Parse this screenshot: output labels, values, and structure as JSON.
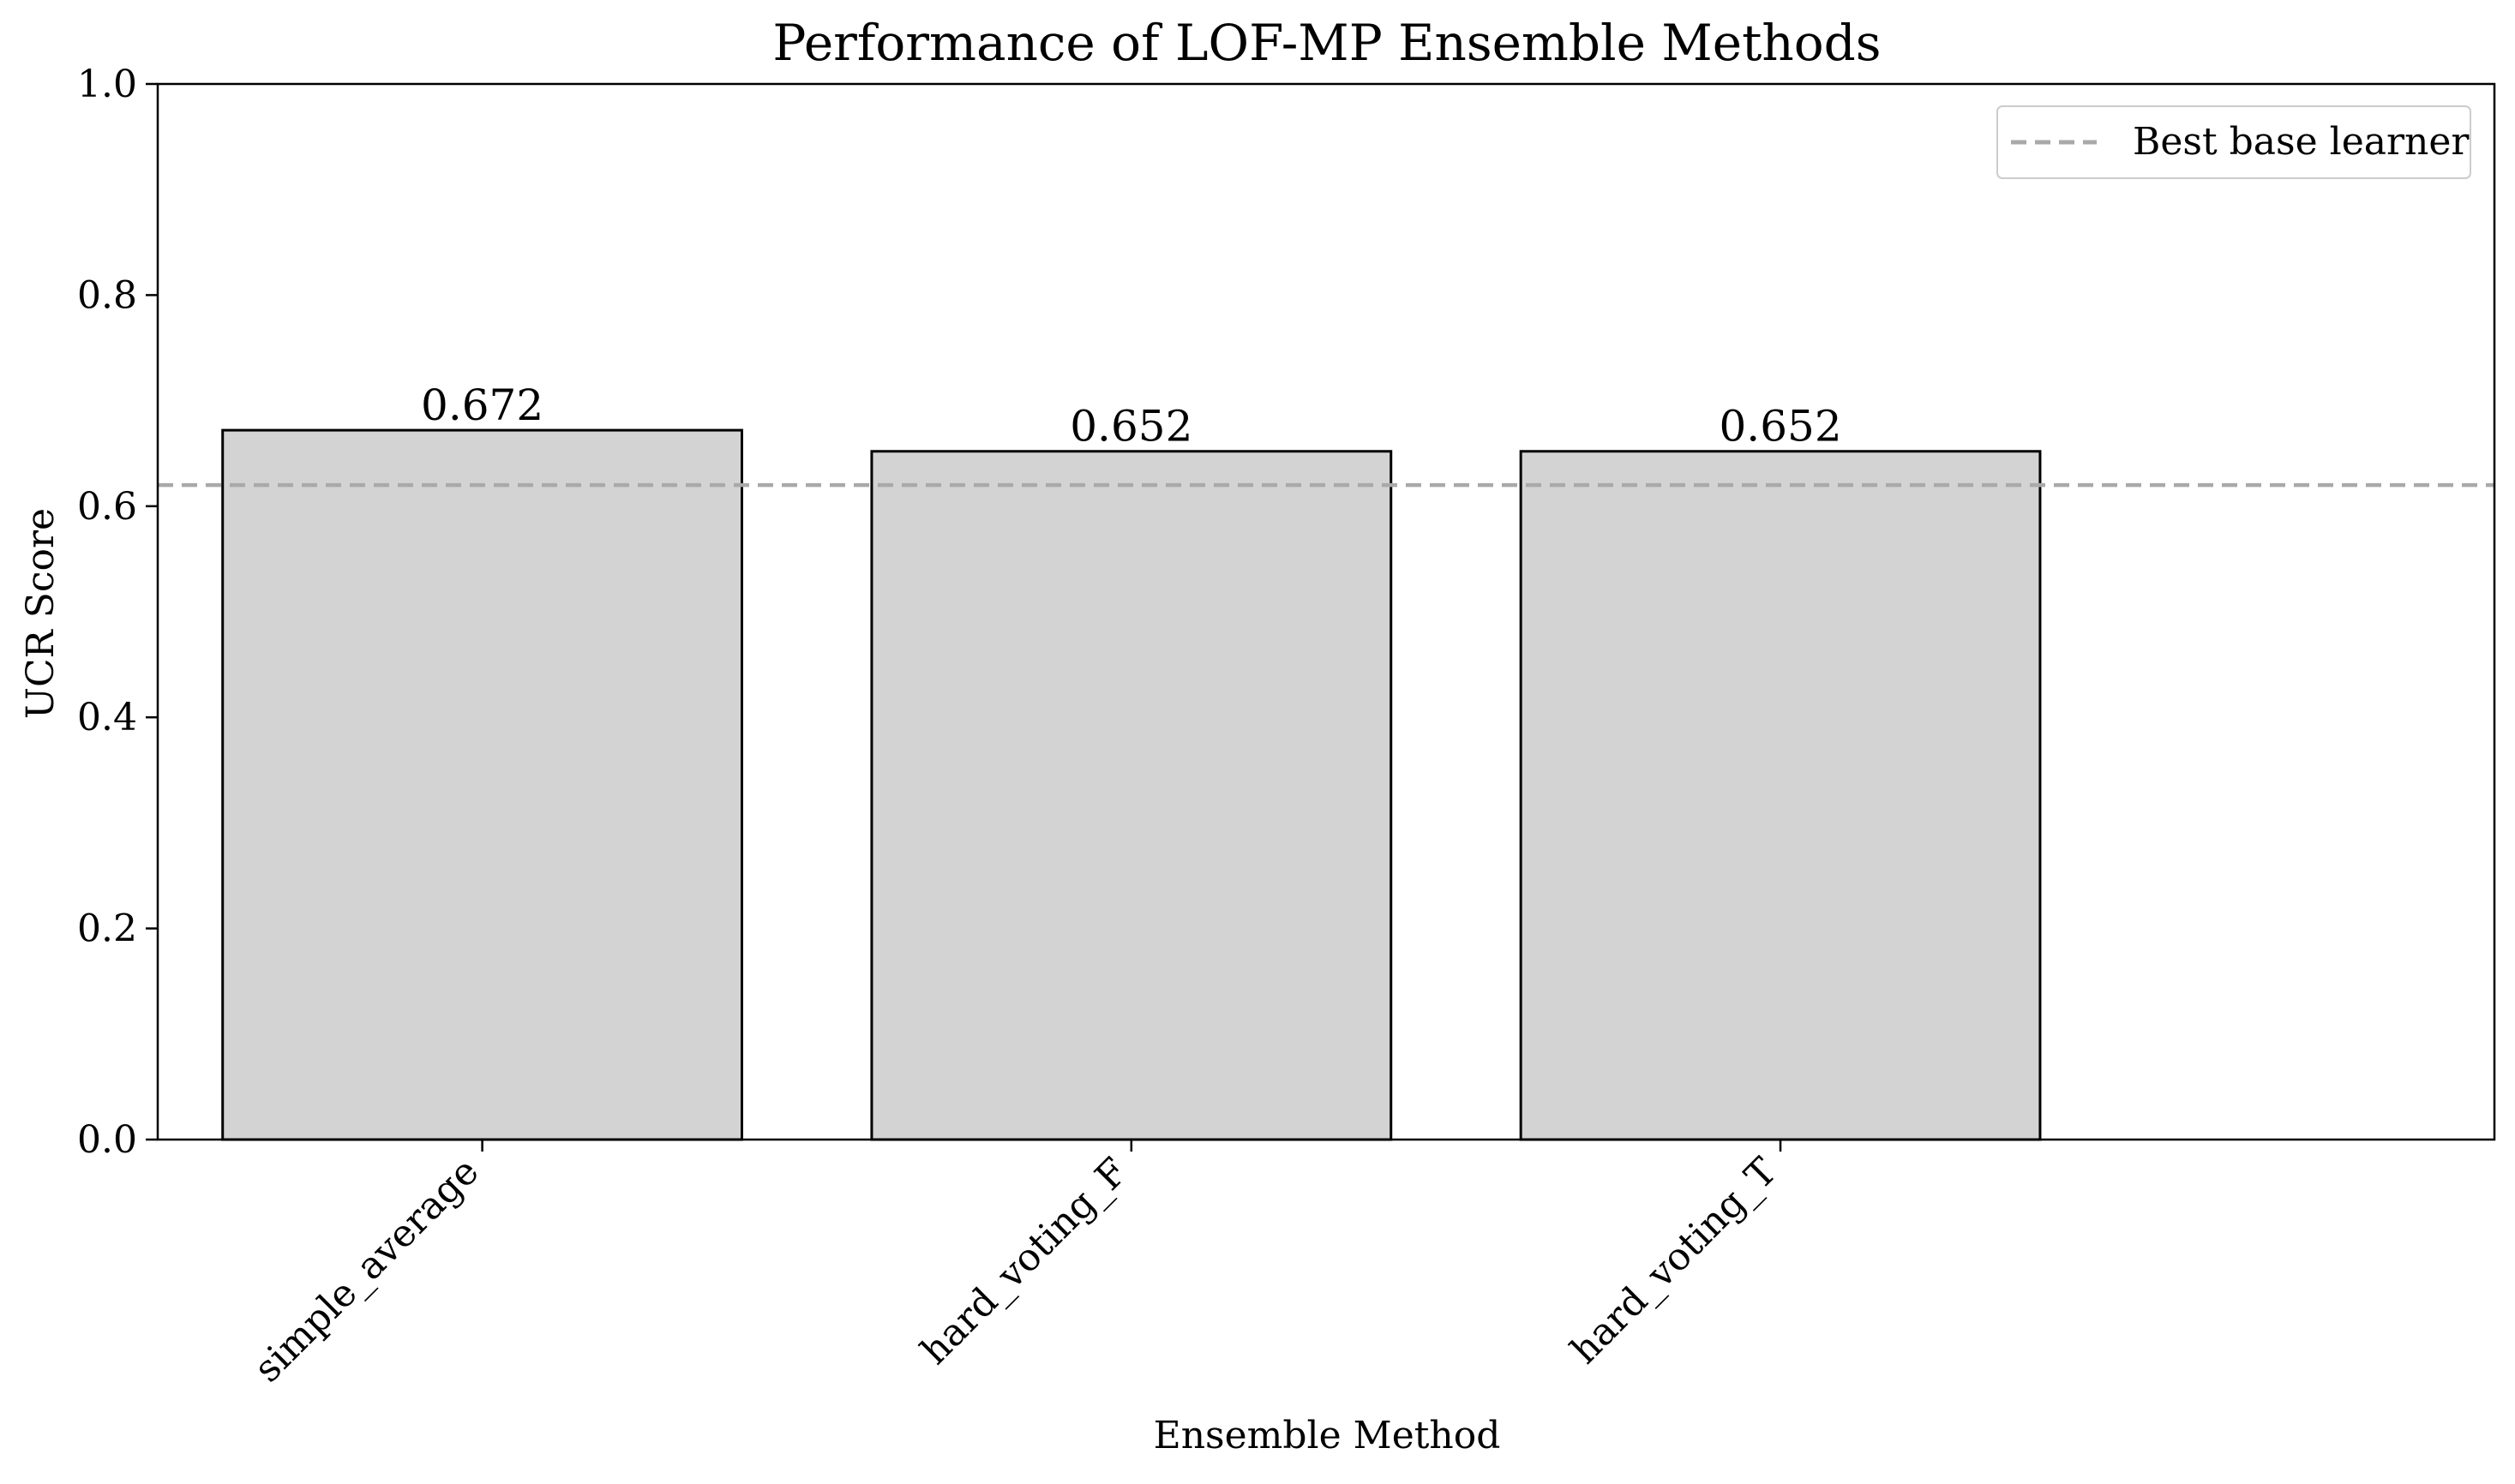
{
  "chart_data": {
    "type": "bar",
    "title": "Performance of LOF-MP Ensemble Methods",
    "xlabel": "Ensemble Method",
    "ylabel": "UCR Score",
    "categories": [
      "simple_average",
      "hard_voting_F",
      "hard_voting_T"
    ],
    "values": [
      0.672,
      0.652,
      0.652
    ],
    "value_labels": [
      "0.672",
      "0.652",
      "0.652"
    ],
    "ylim": [
      0,
      1.0
    ],
    "yticks": [
      0.0,
      0.2,
      0.4,
      0.6,
      0.8,
      1.0
    ],
    "ytick_labels": [
      "0.0",
      "0.2",
      "0.4",
      "0.6",
      "0.8",
      "1.0"
    ],
    "reference_line": {
      "label": "Best base learner",
      "value": 0.62,
      "style": "dashed"
    },
    "legend_position": "top-right",
    "grid": false,
    "colors": {
      "bar_fill": "#d3d3d3",
      "bar_edge": "#000000",
      "reference_line": "#a9a9a9"
    }
  }
}
